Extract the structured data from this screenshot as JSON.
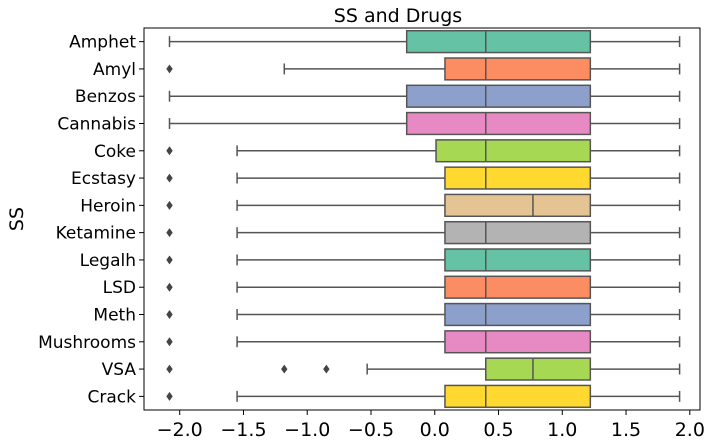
{
  "chart_data": {
    "type": "boxplot",
    "orientation": "horizontal",
    "title": "SS and Drugs",
    "xlabel": "",
    "ylabel": "SS",
    "xlim": [
      -2.28,
      2.08
    ],
    "xticks": [
      -2.0,
      -1.5,
      -1.0,
      -0.5,
      0.0,
      0.5,
      1.0,
      1.5,
      2.0
    ],
    "xtick_labels": [
      "−2.0",
      "−1.5",
      "−1.0",
      "−0.5",
      "0.0",
      "0.5",
      "1.0",
      "1.5",
      "2.0"
    ],
    "grid": false,
    "categories": [
      "Amphet",
      "Amyl",
      "Benzos",
      "Cannabis",
      "Coke",
      "Ecstasy",
      "Heroin",
      "Ketamine",
      "Legalh",
      "LSD",
      "Meth",
      "Mushrooms",
      "VSA",
      "Crack"
    ],
    "boxes": [
      {
        "name": "Amphet",
        "whisker_low": -2.08,
        "q1": -0.22,
        "median": 0.4,
        "q3": 1.22,
        "whisker_high": 1.92,
        "outliers": [],
        "color": "#66c2a5"
      },
      {
        "name": "Amyl",
        "whisker_low": -1.18,
        "q1": 0.08,
        "median": 0.4,
        "q3": 1.22,
        "whisker_high": 1.92,
        "outliers": [
          -2.08
        ],
        "color": "#fc8d62"
      },
      {
        "name": "Benzos",
        "whisker_low": -2.08,
        "q1": -0.22,
        "median": 0.4,
        "q3": 1.22,
        "whisker_high": 1.92,
        "outliers": [],
        "color": "#8da0cb"
      },
      {
        "name": "Cannabis",
        "whisker_low": -2.08,
        "q1": -0.22,
        "median": 0.4,
        "q3": 1.22,
        "whisker_high": 1.92,
        "outliers": [],
        "color": "#e78ac3"
      },
      {
        "name": "Coke",
        "whisker_low": -1.55,
        "q1": 0.01,
        "median": 0.4,
        "q3": 1.22,
        "whisker_high": 1.92,
        "outliers": [
          -2.08
        ],
        "color": "#a6d854"
      },
      {
        "name": "Ecstasy",
        "whisker_low": -1.55,
        "q1": 0.08,
        "median": 0.4,
        "q3": 1.22,
        "whisker_high": 1.92,
        "outliers": [
          -2.08
        ],
        "color": "#ffd92f"
      },
      {
        "name": "Heroin",
        "whisker_low": -1.55,
        "q1": 0.08,
        "median": 0.77,
        "q3": 1.22,
        "whisker_high": 1.92,
        "outliers": [
          -2.08
        ],
        "color": "#e5c494"
      },
      {
        "name": "Ketamine",
        "whisker_low": -1.55,
        "q1": 0.08,
        "median": 0.4,
        "q3": 1.22,
        "whisker_high": 1.92,
        "outliers": [
          -2.08
        ],
        "color": "#b3b3b3"
      },
      {
        "name": "Legalh",
        "whisker_low": -1.55,
        "q1": 0.08,
        "median": 0.4,
        "q3": 1.22,
        "whisker_high": 1.92,
        "outliers": [
          -2.08
        ],
        "color": "#66c2a5"
      },
      {
        "name": "LSD",
        "whisker_low": -1.55,
        "q1": 0.08,
        "median": 0.4,
        "q3": 1.22,
        "whisker_high": 1.92,
        "outliers": [
          -2.08
        ],
        "color": "#fc8d62"
      },
      {
        "name": "Meth",
        "whisker_low": -1.55,
        "q1": 0.08,
        "median": 0.4,
        "q3": 1.22,
        "whisker_high": 1.92,
        "outliers": [
          -2.08
        ],
        "color": "#8da0cb"
      },
      {
        "name": "Mushrooms",
        "whisker_low": -1.55,
        "q1": 0.08,
        "median": 0.4,
        "q3": 1.22,
        "whisker_high": 1.92,
        "outliers": [
          -2.08
        ],
        "color": "#e78ac3"
      },
      {
        "name": "VSA",
        "whisker_low": -0.53,
        "q1": 0.4,
        "median": 0.77,
        "q3": 1.22,
        "whisker_high": 1.92,
        "outliers": [
          -2.08,
          -1.18,
          -0.85
        ],
        "color": "#a6d854"
      },
      {
        "name": "Crack",
        "whisker_low": -1.55,
        "q1": 0.08,
        "median": 0.4,
        "q3": 1.22,
        "whisker_high": 1.92,
        "outliers": [
          -2.08
        ],
        "color": "#ffd92f"
      }
    ]
  }
}
